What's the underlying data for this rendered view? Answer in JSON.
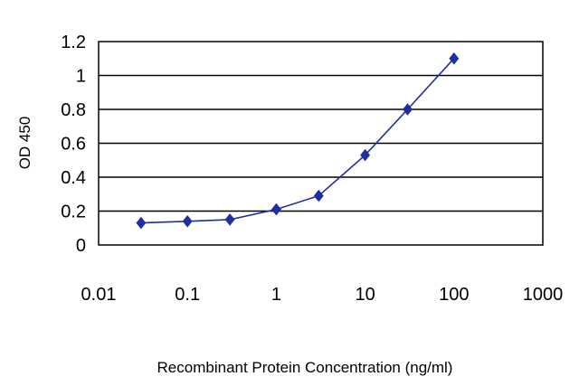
{
  "chart_data": {
    "type": "line",
    "xlabel": "Recombinant Protein Concentration (ng/ml)",
    "ylabel": "OD 450",
    "xscale": "log",
    "xlim": [
      0.01,
      1000
    ],
    "ylim": [
      0,
      1.2
    ],
    "x_ticks": [
      "0.01",
      "0.1",
      "1",
      "10",
      "100",
      "1000"
    ],
    "y_ticks": [
      "0",
      "0.2",
      "0.4",
      "0.6",
      "0.8",
      "1",
      "1.2"
    ],
    "grid": "horizontal",
    "series": [
      {
        "color": "#1f2fa0",
        "marker": "diamond",
        "x": [
          0.03,
          0.1,
          0.3,
          1,
          3,
          10,
          30,
          100
        ],
        "y": [
          0.13,
          0.14,
          0.15,
          0.21,
          0.29,
          0.53,
          0.8,
          1.1
        ]
      }
    ]
  }
}
